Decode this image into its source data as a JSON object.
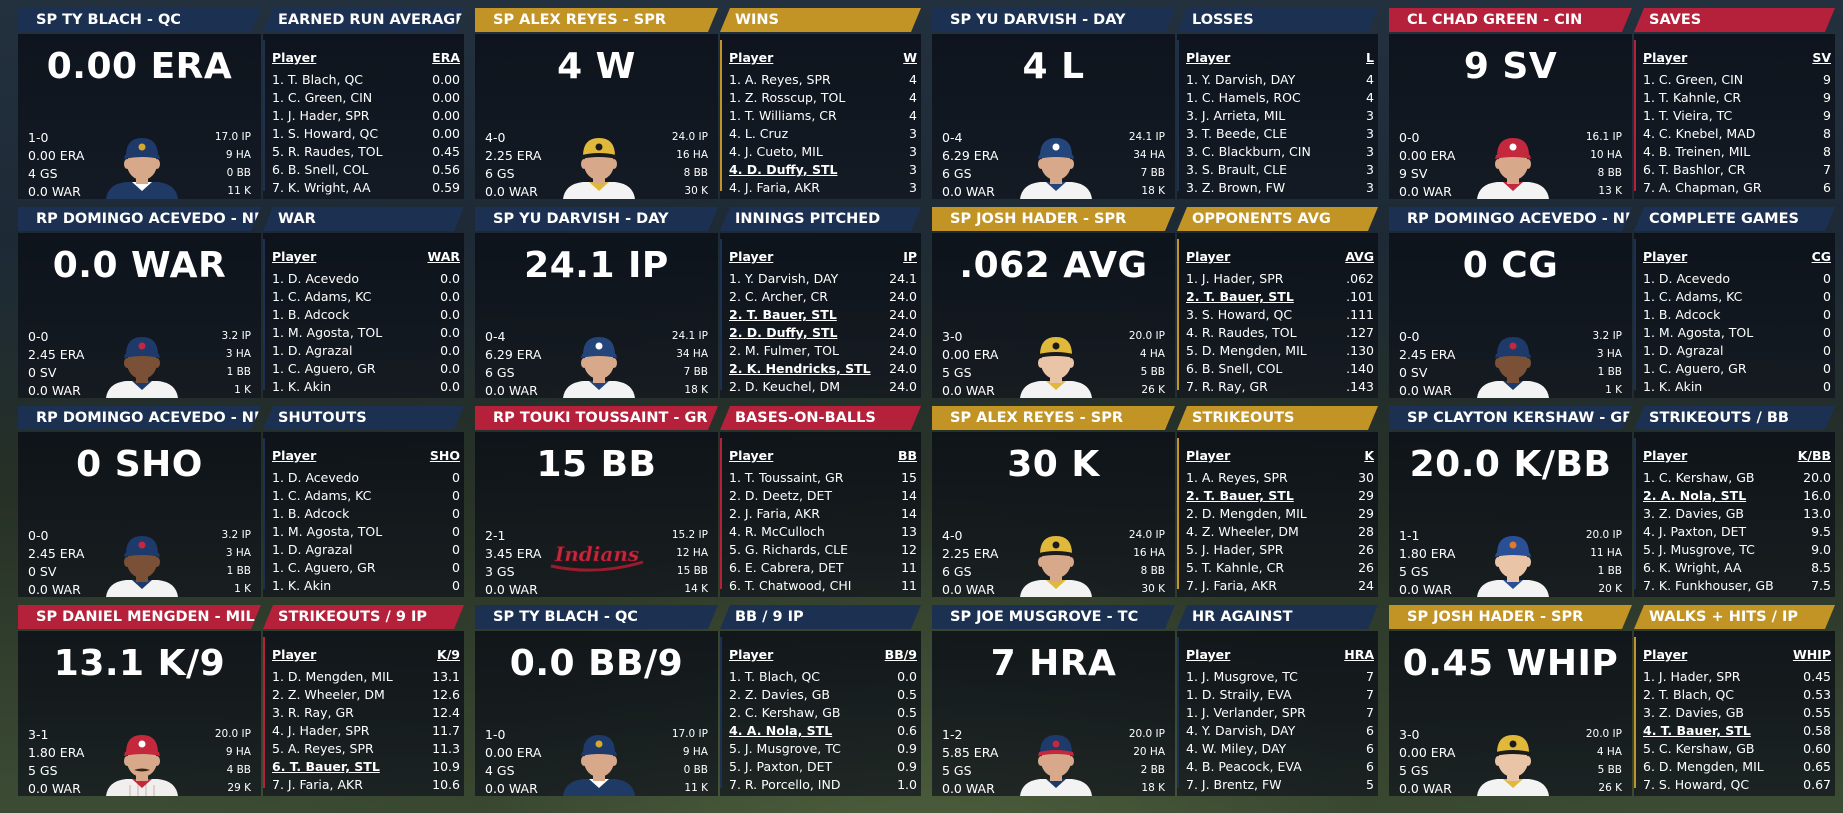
{
  "colors": {
    "navy": "#1c3152",
    "gold": "#c29426",
    "red": "#b5203a"
  },
  "cells": [
    {
      "player_title": "SP TY BLACH - QC",
      "stat_title": "EARNED RUN AVERAGE",
      "theme": "navy",
      "value": "0.00 ERA",
      "stats_left": [
        "1-0",
        "0.00 ERA",
        "4 GS",
        "0.0 WAR"
      ],
      "stats_right": [
        "17.0 IP",
        "9 HA",
        "0 BB",
        "11 K"
      ],
      "headshot": {
        "cap": "#1d3a6b",
        "bill": "#1d3a6b",
        "logo": "#d9a72c",
        "jersey": "#203a66",
        "trim": "#ffffff"
      },
      "col_player": "Player",
      "col_stat": "ERA",
      "rows": [
        {
          "name": "1. T. Blach, QC",
          "value": "0.00"
        },
        {
          "name": "1. C. Green, CIN",
          "value": "0.00"
        },
        {
          "name": "1. J. Hader, SPR",
          "value": "0.00"
        },
        {
          "name": "1. S. Howard, QC",
          "value": "0.00"
        },
        {
          "name": "5. R. Raudes, TOL",
          "value": "0.45"
        },
        {
          "name": "6. B. Snell, COL",
          "value": "0.56"
        },
        {
          "name": "7. K. Wright, AA",
          "value": "0.59"
        }
      ]
    },
    {
      "player_title": "SP ALEX REYES - SPR",
      "stat_title": "WINS",
      "theme": "gold",
      "value": "4 W",
      "stats_left": [
        "4-0",
        "2.25 ERA",
        "6 GS",
        "0.0 WAR"
      ],
      "stats_right": [
        "24.0 IP",
        "16 HA",
        "8 BB",
        "30 K"
      ],
      "headshot": {
        "cap": "#e0b83a",
        "bill": "#1b1b1b",
        "logo": "#1b1b1b",
        "jersey": "#f3f3f3",
        "trim": "#e0b83a"
      },
      "col_player": "Player",
      "col_stat": "W",
      "rows": [
        {
          "name": "1. A. Reyes, SPR",
          "value": "4"
        },
        {
          "name": "1. Z. Rosscup, TOL",
          "value": "4"
        },
        {
          "name": "1. T. Williams, CR",
          "value": "4"
        },
        {
          "name": "4. L. Cruz",
          "value": "3"
        },
        {
          "name": "4. J. Cueto, MIL",
          "value": "3"
        },
        {
          "name": "4. D. Duffy, STL",
          "value": "3",
          "hl": true
        },
        {
          "name": "4. J. Faria, AKR",
          "value": "3"
        }
      ]
    },
    {
      "player_title": "SP YU DARVISH - DAY",
      "stat_title": "LOSSES",
      "theme": "navy",
      "value": "4 L",
      "stats_left": [
        "0-4",
        "6.29 ERA",
        "6 GS",
        "0.0 WAR"
      ],
      "stats_right": [
        "24.1 IP",
        "34 HA",
        "7 BB",
        "18 K"
      ],
      "headshot": {
        "cap": "#23457a",
        "bill": "#23457a",
        "logo": "#ffffff",
        "jersey": "#f3f3f3",
        "trim": "#23457a"
      },
      "col_player": "Player",
      "col_stat": "L",
      "rows": [
        {
          "name": "1. Y. Darvish, DAY",
          "value": "4"
        },
        {
          "name": "1. C. Hamels, ROC",
          "value": "4"
        },
        {
          "name": "3. J. Arrieta, MIL",
          "value": "3"
        },
        {
          "name": "3. T. Beede, CLE",
          "value": "3"
        },
        {
          "name": "3. C. Blackburn, CIN",
          "value": "3"
        },
        {
          "name": "3. S. Brault, CLE",
          "value": "3"
        },
        {
          "name": "3. Z. Brown, FW",
          "value": "3"
        }
      ]
    },
    {
      "player_title": "CL CHAD GREEN - CIN",
      "stat_title": "SAVES",
      "theme": "red",
      "value": "9 SV",
      "stats_left": [
        "0-0",
        "0.00 ERA",
        "9 SV",
        "0.0 WAR"
      ],
      "stats_right": [
        "16.1 IP",
        "10 HA",
        "8 BB",
        "13 K"
      ],
      "headshot": {
        "cap": "#c3283c",
        "bill": "#c3283c",
        "logo": "#ffffff",
        "jersey": "#f3f3f3",
        "trim": "#c3283c"
      },
      "col_player": "Player",
      "col_stat": "SV",
      "rows": [
        {
          "name": "1. C. Green, CIN",
          "value": "9"
        },
        {
          "name": "1. T. Kahnle, CR",
          "value": "9"
        },
        {
          "name": "1. T. Vieira, TC",
          "value": "9"
        },
        {
          "name": "4. C. Knebel, MAD",
          "value": "8"
        },
        {
          "name": "4. B. Treinen, MIL",
          "value": "8"
        },
        {
          "name": "6. T. Bashlor, CR",
          "value": "7"
        },
        {
          "name": "7. A. Chapman, GR",
          "value": "6"
        }
      ]
    },
    {
      "player_title": "RP DOMINGO ACEVEDO - NRL",
      "stat_title": "WAR",
      "theme": "navy",
      "value": "0.0 WAR",
      "stats_left": [
        "0-0",
        "2.45 ERA",
        "0 SV",
        "0.0 WAR"
      ],
      "stats_right": [
        "3.2 IP",
        "3 HA",
        "1 BB",
        "1 K"
      ],
      "headshot": {
        "cap": "#1d3a6b",
        "bill": "#1d3a6b",
        "logo": "#c3283c",
        "jersey": "#f3f3f3",
        "trim": "#1d3a6b",
        "dark": true
      },
      "col_player": "Player",
      "col_stat": "WAR",
      "rows": [
        {
          "name": "1. D. Acevedo",
          "value": "0.0"
        },
        {
          "name": "1. C. Adams, KC",
          "value": "0.0"
        },
        {
          "name": "1. B. Adcock",
          "value": "0.0"
        },
        {
          "name": "1. M. Agosta, TOL",
          "value": "0.0"
        },
        {
          "name": "1. D. Agrazal",
          "value": "0.0"
        },
        {
          "name": "1. C. Aguero, GR",
          "value": "0.0"
        },
        {
          "name": "1. K. Akin",
          "value": "0.0"
        }
      ]
    },
    {
      "player_title": "SP YU DARVISH - DAY",
      "stat_title": "INNINGS PITCHED",
      "theme": "navy",
      "value": "24.1 IP",
      "stats_left": [
        "0-4",
        "6.29 ERA",
        "6 GS",
        "0.0 WAR"
      ],
      "stats_right": [
        "24.1 IP",
        "34 HA",
        "7 BB",
        "18 K"
      ],
      "headshot": {
        "cap": "#23457a",
        "bill": "#23457a",
        "logo": "#ffffff",
        "jersey": "#f3f3f3",
        "trim": "#23457a"
      },
      "col_player": "Player",
      "col_stat": "IP",
      "rows": [
        {
          "name": "1. Y. Darvish, DAY",
          "value": "24.1"
        },
        {
          "name": "2. C. Archer, CR",
          "value": "24.0"
        },
        {
          "name": "2. T. Bauer, STL",
          "value": "24.0",
          "hl": true
        },
        {
          "name": "2. D. Duffy, STL",
          "value": "24.0",
          "hl": true
        },
        {
          "name": "2. M. Fulmer, TOL",
          "value": "24.0"
        },
        {
          "name": "2. K. Hendricks, STL",
          "value": "24.0",
          "hl": true
        },
        {
          "name": "2. D. Keuchel, DM",
          "value": "24.0"
        }
      ]
    },
    {
      "player_title": "SP JOSH HADER - SPR",
      "stat_title": "OPPONENTS AVG",
      "theme": "gold",
      "value": ".062 AVG",
      "stats_left": [
        "3-0",
        "0.00 ERA",
        "5 GS",
        "0.0 WAR"
      ],
      "stats_right": [
        "20.0 IP",
        "4 HA",
        "5 BB",
        "26 K"
      ],
      "headshot": {
        "cap": "#e0b83a",
        "bill": "#1b1b1b",
        "logo": "#1b1b1b",
        "jersey": "#f3f3f3",
        "trim": "#e0b83a",
        "light": true
      },
      "col_player": "Player",
      "col_stat": "AVG",
      "rows": [
        {
          "name": "1. J. Hader, SPR",
          "value": ".062"
        },
        {
          "name": "2. T. Bauer, STL",
          "value": ".101",
          "hl": true
        },
        {
          "name": "3. S. Howard, QC",
          "value": ".111"
        },
        {
          "name": "4. R. Raudes, TOL",
          "value": ".127"
        },
        {
          "name": "5. D. Mengden, MIL",
          "value": ".130"
        },
        {
          "name": "6. B. Snell, COL",
          "value": ".140"
        },
        {
          "name": "7. R. Ray, GR",
          "value": ".143"
        }
      ]
    },
    {
      "player_title": "RP DOMINGO ACEVEDO - NRL",
      "stat_title": "COMPLETE GAMES",
      "theme": "navy",
      "value": "0 CG",
      "stats_left": [
        "0-0",
        "2.45 ERA",
        "0 SV",
        "0.0 WAR"
      ],
      "stats_right": [
        "3.2 IP",
        "3 HA",
        "1 BB",
        "1 K"
      ],
      "headshot": {
        "cap": "#1d3a6b",
        "bill": "#1d3a6b",
        "logo": "#c3283c",
        "jersey": "#f3f3f3",
        "trim": "#1d3a6b",
        "dark": true
      },
      "col_player": "Player",
      "col_stat": "CG",
      "rows": [
        {
          "name": "1. D. Acevedo",
          "value": "0"
        },
        {
          "name": "1. C. Adams, KC",
          "value": "0"
        },
        {
          "name": "1. B. Adcock",
          "value": "0"
        },
        {
          "name": "1. M. Agosta, TOL",
          "value": "0"
        },
        {
          "name": "1. D. Agrazal",
          "value": "0"
        },
        {
          "name": "1. C. Aguero, GR",
          "value": "0"
        },
        {
          "name": "1. K. Akin",
          "value": "0"
        }
      ]
    },
    {
      "player_title": "RP DOMINGO ACEVEDO - NRL",
      "stat_title": "SHUTOUTS",
      "theme": "navy",
      "value": "0 SHO",
      "stats_left": [
        "0-0",
        "2.45 ERA",
        "0 SV",
        "0.0 WAR"
      ],
      "stats_right": [
        "3.2 IP",
        "3 HA",
        "1 BB",
        "1 K"
      ],
      "headshot": {
        "cap": "#1d3a6b",
        "bill": "#1d3a6b",
        "logo": "#c3283c",
        "jersey": "#f3f3f3",
        "trim": "#1d3a6b",
        "dark": true
      },
      "col_player": "Player",
      "col_stat": "SHO",
      "rows": [
        {
          "name": "1. D. Acevedo",
          "value": "0"
        },
        {
          "name": "1. C. Adams, KC",
          "value": "0"
        },
        {
          "name": "1. B. Adcock",
          "value": "0"
        },
        {
          "name": "1. M. Agosta, TOL",
          "value": "0"
        },
        {
          "name": "1. D. Agrazal",
          "value": "0"
        },
        {
          "name": "1. C. Aguero, GR",
          "value": "0"
        },
        {
          "name": "1. K. Akin",
          "value": "0"
        }
      ]
    },
    {
      "player_title": "RP TOUKI TOUSSAINT - GR",
      "stat_title": "BASES-ON-BALLS",
      "theme": "red",
      "value": "15 BB",
      "stats_left": [
        "2-1",
        "3.45 ERA",
        "3 GS",
        "0.0 WAR"
      ],
      "stats_right": [
        "15.2 IP",
        "12 HA",
        "15 BB",
        "14 K"
      ],
      "logo_text": "Indians",
      "col_player": "Player",
      "col_stat": "BB",
      "rows": [
        {
          "name": "1. T. Toussaint, GR",
          "value": "15"
        },
        {
          "name": "2. D. Deetz, DET",
          "value": "14"
        },
        {
          "name": "2. J. Faria, AKR",
          "value": "14"
        },
        {
          "name": "4. R. McCulloch",
          "value": "13"
        },
        {
          "name": "5. G. Richards, CLE",
          "value": "12"
        },
        {
          "name": "6. E. Cabrera, DET",
          "value": "11"
        },
        {
          "name": "6. T. Chatwood, CHI",
          "value": "11"
        }
      ]
    },
    {
      "player_title": "SP ALEX REYES - SPR",
      "stat_title": "STRIKEOUTS",
      "theme": "gold",
      "value": "30 K",
      "stats_left": [
        "4-0",
        "2.25 ERA",
        "6 GS",
        "0.0 WAR"
      ],
      "stats_right": [
        "24.0 IP",
        "16 HA",
        "8 BB",
        "30 K"
      ],
      "headshot": {
        "cap": "#e0b83a",
        "bill": "#1b1b1b",
        "logo": "#1b1b1b",
        "jersey": "#f3f3f3",
        "trim": "#e0b83a"
      },
      "col_player": "Player",
      "col_stat": "K",
      "rows": [
        {
          "name": "1. A. Reyes, SPR",
          "value": "30"
        },
        {
          "name": "2. T. Bauer, STL",
          "value": "29",
          "hl": true
        },
        {
          "name": "2. D. Mengden, MIL",
          "value": "29"
        },
        {
          "name": "4. Z. Wheeler, DM",
          "value": "28"
        },
        {
          "name": "5. J. Hader, SPR",
          "value": "26"
        },
        {
          "name": "5. T. Kahnle, CR",
          "value": "26"
        },
        {
          "name": "7. J. Faria, AKR",
          "value": "24"
        }
      ]
    },
    {
      "player_title": "SP CLAYTON KERSHAW - GB",
      "stat_title": "STRIKEOUTS / BB",
      "theme": "navy",
      "value": "20.0 K/BB",
      "stats_left": [
        "1-1",
        "1.80 ERA",
        "5 GS",
        "0.0 WAR"
      ],
      "stats_right": [
        "20.0 IP",
        "11 HA",
        "1 BB",
        "20 K"
      ],
      "headshot": {
        "cap": "#2a4f94",
        "bill": "#2a4f94",
        "logo": "#e07a2a",
        "jersey": "#f3f3f3",
        "trim": "#2a4f94",
        "light": true
      },
      "col_player": "Player",
      "col_stat": "K/BB",
      "rows": [
        {
          "name": "1. C. Kershaw, GB",
          "value": "20.0"
        },
        {
          "name": "2. A. Nola, STL",
          "value": "16.0",
          "hl": true
        },
        {
          "name": "3. Z. Davies, GB",
          "value": "13.0"
        },
        {
          "name": "4. J. Paxton, DET",
          "value": "9.5"
        },
        {
          "name": "5. J. Musgrove, TC",
          "value": "9.0"
        },
        {
          "name": "6. K. Wright, AA",
          "value": "8.5"
        },
        {
          "name": "7. K. Funkhouser, GB",
          "value": "7.5"
        }
      ]
    },
    {
      "player_title": "SP DANIEL MENGDEN - MIL",
      "stat_title": "STRIKEOUTS / 9 IP",
      "theme": "red",
      "value": "13.1 K/9",
      "stats_left": [
        "3-1",
        "1.80 ERA",
        "5 GS",
        "0.0 WAR"
      ],
      "stats_right": [
        "20.0 IP",
        "9 HA",
        "4 BB",
        "29 K"
      ],
      "headshot": {
        "cap": "#c3283c",
        "bill": "#c3283c",
        "logo": "#ffffff",
        "jersey": "#f1eeee",
        "trim": "#c3283c",
        "stripes": true,
        "mustache": true
      },
      "col_player": "Player",
      "col_stat": "K/9",
      "rows": [
        {
          "name": "1. D. Mengden, MIL",
          "value": "13.1"
        },
        {
          "name": "2. Z. Wheeler, DM",
          "value": "12.6"
        },
        {
          "name": "3. R. Ray, GR",
          "value": "12.4"
        },
        {
          "name": "4. J. Hader, SPR",
          "value": "11.7"
        },
        {
          "name": "5. A. Reyes, SPR",
          "value": "11.3"
        },
        {
          "name": "6. T. Bauer, STL",
          "value": "10.9",
          "hl": true
        },
        {
          "name": "7. J. Faria, AKR",
          "value": "10.6"
        }
      ]
    },
    {
      "player_title": "SP TY BLACH - QC",
      "stat_title": "BB / 9 IP",
      "theme": "navy",
      "value": "0.0 BB/9",
      "stats_left": [
        "1-0",
        "0.00 ERA",
        "4 GS",
        "0.0 WAR"
      ],
      "stats_right": [
        "17.0 IP",
        "9 HA",
        "0 BB",
        "11 K"
      ],
      "headshot": {
        "cap": "#1d3a6b",
        "bill": "#1d3a6b",
        "logo": "#d9a72c",
        "jersey": "#203a66",
        "trim": "#ffffff"
      },
      "col_player": "Player",
      "col_stat": "BB/9",
      "rows": [
        {
          "name": "1. T. Blach, QC",
          "value": "0.0"
        },
        {
          "name": "2. Z. Davies, GB",
          "value": "0.5"
        },
        {
          "name": "2. C. Kershaw, GB",
          "value": "0.5"
        },
        {
          "name": "4. A. Nola, STL",
          "value": "0.6",
          "hl": true
        },
        {
          "name": "5. J. Musgrove, TC",
          "value": "0.9"
        },
        {
          "name": "5. J. Paxton, DET",
          "value": "0.9"
        },
        {
          "name": "7. R. Porcello, IND",
          "value": "1.0"
        }
      ]
    },
    {
      "player_title": "SP JOE MUSGROVE - TC",
      "stat_title": "HR AGAINST",
      "theme": "navy",
      "value": "7 HRA",
      "stats_left": [
        "1-2",
        "5.85 ERA",
        "5 GS",
        "0.0 WAR"
      ],
      "stats_right": [
        "20.0 IP",
        "20 HA",
        "2 BB",
        "18 K"
      ],
      "headshot": {
        "cap": "#1d3a6b",
        "bill": "#c3283c",
        "logo": "#c3283c",
        "jersey": "#f3f3f3",
        "trim": "#1d3a6b"
      },
      "col_player": "Player",
      "col_stat": "HRA",
      "rows": [
        {
          "name": "1. J. Musgrove, TC",
          "value": "7"
        },
        {
          "name": "1. D. Straily, EVA",
          "value": "7"
        },
        {
          "name": "1. J. Verlander, SPR",
          "value": "7"
        },
        {
          "name": "4. Y. Darvish, DAY",
          "value": "6"
        },
        {
          "name": "4. W. Miley, DAY",
          "value": "6"
        },
        {
          "name": "4. B. Peacock, EVA",
          "value": "6"
        },
        {
          "name": "7. J. Brentz, FW",
          "value": "5"
        }
      ]
    },
    {
      "player_title": "SP JOSH HADER - SPR",
      "stat_title": "WALKS + HITS / IP",
      "theme": "gold",
      "value": "0.45 WHIP",
      "stats_left": [
        "3-0",
        "0.00 ERA",
        "5 GS",
        "0.0 WAR"
      ],
      "stats_right": [
        "20.0 IP",
        "4 HA",
        "5 BB",
        "26 K"
      ],
      "headshot": {
        "cap": "#e0b83a",
        "bill": "#1b1b1b",
        "logo": "#1b1b1b",
        "jersey": "#f3f3f3",
        "trim": "#e0b83a",
        "light": true
      },
      "col_player": "Player",
      "col_stat": "WHIP",
      "rows": [
        {
          "name": "1. J. Hader, SPR",
          "value": "0.45"
        },
        {
          "name": "2. T. Blach, QC",
          "value": "0.53"
        },
        {
          "name": "3. Z. Davies, GB",
          "value": "0.55"
        },
        {
          "name": "4. T. Bauer, STL",
          "value": "0.58",
          "hl": true
        },
        {
          "name": "5. C. Kershaw, GB",
          "value": "0.60"
        },
        {
          "name": "6. D. Mengden, MIL",
          "value": "0.65"
        },
        {
          "name": "7. S. Howard, QC",
          "value": "0.67"
        }
      ]
    }
  ]
}
